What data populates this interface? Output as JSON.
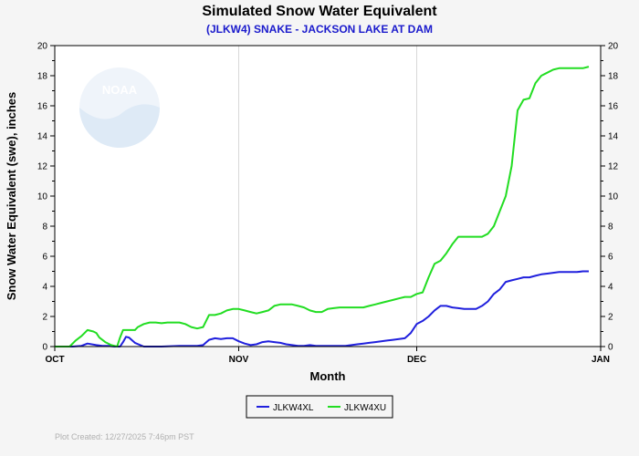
{
  "chart_data": {
    "type": "line",
    "title": "Simulated Snow Water Equivalent",
    "subtitle": "(JLKW4) SNAKE - JACKSON LAKE AT DAM",
    "xlabel": "Month",
    "ylabel": "Snow Water Equivalent (swe),  inches",
    "ylim": [
      0,
      20
    ],
    "xlim": [
      0,
      92
    ],
    "yticks": [
      0,
      2,
      4,
      6,
      8,
      10,
      12,
      14,
      16,
      18,
      20
    ],
    "xticks": [
      {
        "label": "OCT",
        "day": 0
      },
      {
        "label": "NOV",
        "day": 31
      },
      {
        "label": "DEC",
        "day": 61
      },
      {
        "label": "JAN",
        "day": 92
      }
    ],
    "legend_position": "bottom-center",
    "watermark": "NOAA",
    "credit": "Plot Created:  12/27/2025 7:46pm PST",
    "series": [
      {
        "name": "JLKW4XL",
        "color": "#2020dd",
        "x": [
          0,
          3,
          4.5,
          5.5,
          7,
          8,
          9,
          10,
          10.5,
          11,
          11.5,
          12,
          12.5,
          13.5,
          15,
          18,
          21,
          24,
          25,
          26,
          27,
          28,
          29,
          30,
          31,
          32,
          33,
          34,
          35,
          36,
          37,
          38,
          39,
          40,
          41,
          42,
          43,
          44,
          45,
          46,
          47,
          48,
          49,
          50,
          51,
          52,
          53,
          54,
          55,
          56,
          57,
          58,
          59,
          60,
          61,
          62,
          63,
          64,
          65,
          66,
          67,
          68,
          69,
          70,
          71,
          72,
          73,
          74,
          75,
          76,
          77,
          78,
          79,
          80,
          81,
          82,
          83,
          84,
          85,
          86,
          87,
          88,
          89,
          90
        ],
        "values": [
          0,
          0,
          0.05,
          0.2,
          0.1,
          0.05,
          0.05,
          0,
          0,
          0,
          0.3,
          0.65,
          0.6,
          0.25,
          0,
          0,
          0.05,
          0.05,
          0.1,
          0.45,
          0.55,
          0.5,
          0.55,
          0.55,
          0.35,
          0.2,
          0.1,
          0.15,
          0.3,
          0.35,
          0.3,
          0.25,
          0.15,
          0.1,
          0.05,
          0.05,
          0.1,
          0.05,
          0.05,
          0.05,
          0.05,
          0.05,
          0.05,
          0.1,
          0.15,
          0.2,
          0.25,
          0.3,
          0.35,
          0.4,
          0.45,
          0.5,
          0.55,
          0.9,
          1.5,
          1.7,
          2.0,
          2.4,
          2.7,
          2.7,
          2.6,
          2.55,
          2.5,
          2.5,
          2.5,
          2.7,
          3.0,
          3.5,
          3.8,
          4.3,
          4.4,
          4.5,
          4.6,
          4.6,
          4.7,
          4.8,
          4.85,
          4.9,
          4.95,
          4.95,
          4.95,
          4.95,
          5.0,
          5.0
        ]
      },
      {
        "name": "JLKW4XU",
        "color": "#22dd22",
        "x": [
          0,
          2.5,
          3.5,
          4.5,
          5.5,
          6.5,
          7,
          7.5,
          8.5,
          9.5,
          10.5,
          11,
          11.5,
          12,
          12.5,
          13.5,
          14,
          15,
          16,
          17,
          18,
          19,
          20,
          21,
          22,
          23,
          24,
          25,
          26,
          27,
          28,
          29,
          30,
          31,
          32,
          33,
          34,
          35,
          36,
          37,
          38,
          39,
          40,
          41,
          42,
          43,
          44,
          45,
          46,
          47,
          48,
          49,
          50,
          51,
          52,
          53,
          54,
          55,
          56,
          57,
          58,
          59,
          60,
          61,
          62,
          63,
          64,
          65,
          66,
          67,
          68,
          69,
          70,
          71,
          72,
          73,
          74,
          75,
          76,
          77,
          78,
          79,
          80,
          81,
          82,
          83,
          84,
          85,
          86,
          87,
          88,
          89,
          90
        ],
        "values": [
          0,
          0,
          0.4,
          0.7,
          1.1,
          1.0,
          0.9,
          0.6,
          0.3,
          0.1,
          0,
          0.6,
          1.1,
          1.1,
          1.1,
          1.1,
          1.3,
          1.5,
          1.6,
          1.6,
          1.55,
          1.6,
          1.6,
          1.6,
          1.5,
          1.3,
          1.2,
          1.3,
          2.1,
          2.1,
          2.2,
          2.4,
          2.5,
          2.5,
          2.4,
          2.3,
          2.2,
          2.3,
          2.4,
          2.7,
          2.8,
          2.8,
          2.8,
          2.7,
          2.6,
          2.4,
          2.3,
          2.3,
          2.5,
          2.55,
          2.6,
          2.6,
          2.6,
          2.6,
          2.6,
          2.7,
          2.8,
          2.9,
          3.0,
          3.1,
          3.2,
          3.3,
          3.3,
          3.5,
          3.6,
          4.6,
          5.5,
          5.7,
          6.2,
          6.8,
          7.3,
          7.3,
          7.3,
          7.3,
          7.3,
          7.5,
          8.0,
          9.0,
          10.0,
          12.0,
          15.7,
          16.4,
          16.5,
          17.5,
          18.0,
          18.2,
          18.4,
          18.5,
          18.5,
          18.5,
          18.5,
          18.5,
          18.6
        ]
      }
    ]
  }
}
